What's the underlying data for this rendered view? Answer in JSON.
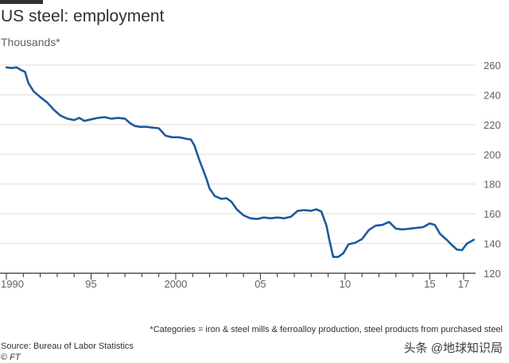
{
  "title": "US steel: employment",
  "footnote": "*Categories = iron & steel mills & ferroalloy production, steel products from purchased steel",
  "source": "Source: Bureau of Labor Statistics",
  "credit_prefix": "©",
  "credit_brand": "FT",
  "watermark": "头条 @地球知识局",
  "colors": {
    "line": "#1a5b9c",
    "grid": "#e3ddd5",
    "axis": "#33302e",
    "text": "#66605c"
  },
  "chart_data": {
    "type": "line",
    "title": "US steel: employment",
    "ylabel": "Thousands*",
    "xlabel": "",
    "ylim": [
      120,
      260
    ],
    "xlim": [
      1990,
      2017.8
    ],
    "grid": true,
    "y_ticks": [
      120,
      140,
      160,
      180,
      200,
      220,
      240,
      260
    ],
    "y_tick_labels": [
      "120",
      "140",
      "160",
      "180",
      "200",
      "220",
      "240",
      "260"
    ],
    "x_ticks": [
      1990,
      1995,
      2000,
      2005,
      2010,
      2015,
      2017
    ],
    "x_tick_labels": [
      "1990",
      "95",
      "2000",
      "05",
      "10",
      "15",
      "17"
    ],
    "series": [
      {
        "name": "US steel employment",
        "x": [
          1990.0,
          1990.3,
          1990.6,
          1990.9,
          1991.1,
          1991.3,
          1991.6,
          1992.0,
          1992.4,
          1992.8,
          1993.2,
          1993.6,
          1994.0,
          1994.3,
          1994.6,
          1995.0,
          1995.4,
          1995.8,
          1996.2,
          1996.6,
          1997.0,
          1997.3,
          1997.6,
          1997.9,
          1998.3,
          1998.6,
          1999.0,
          1999.4,
          1999.8,
          2000.2,
          2000.6,
          2000.9,
          2001.1,
          2001.4,
          2001.8,
          2002.0,
          2002.3,
          2002.7,
          2003.0,
          2003.3,
          2003.6,
          2004.0,
          2004.4,
          2004.8,
          2005.2,
          2005.6,
          2006.0,
          2006.4,
          2006.8,
          2007.2,
          2007.6,
          2008.0,
          2008.3,
          2008.6,
          2008.9,
          2009.1,
          2009.3,
          2009.6,
          2009.9,
          2010.2,
          2010.6,
          2011.0,
          2011.4,
          2011.8,
          2012.2,
          2012.6,
          2013.0,
          2013.4,
          2013.8,
          2014.2,
          2014.6,
          2015.0,
          2015.3,
          2015.6,
          2016.0,
          2016.3,
          2016.6,
          2016.9,
          2017.2,
          2017.6
        ],
        "values": [
          258.5,
          258.0,
          258.5,
          256.5,
          255.5,
          248.0,
          242.5,
          238.5,
          235.0,
          230.0,
          226.0,
          224.0,
          223.0,
          224.5,
          222.5,
          223.5,
          224.5,
          225.0,
          224.0,
          224.5,
          224.0,
          221.0,
          219.0,
          218.5,
          218.5,
          218.0,
          217.5,
          212.5,
          211.5,
          211.5,
          210.5,
          210.0,
          206.0,
          196.0,
          184.0,
          177.0,
          172.0,
          170.0,
          170.5,
          168.0,
          163.0,
          159.0,
          157.0,
          156.5,
          157.5,
          157.0,
          157.5,
          157.0,
          158.0,
          162.0,
          162.5,
          162.0,
          163.0,
          161.5,
          152.0,
          141.0,
          131.0,
          131.0,
          133.5,
          139.5,
          140.5,
          143.0,
          149.0,
          152.0,
          152.5,
          154.5,
          150.0,
          149.5,
          150.0,
          150.5,
          151.0,
          153.5,
          152.5,
          146.5,
          142.5,
          139.0,
          136.0,
          135.5,
          140.0,
          142.5
        ]
      }
    ]
  }
}
